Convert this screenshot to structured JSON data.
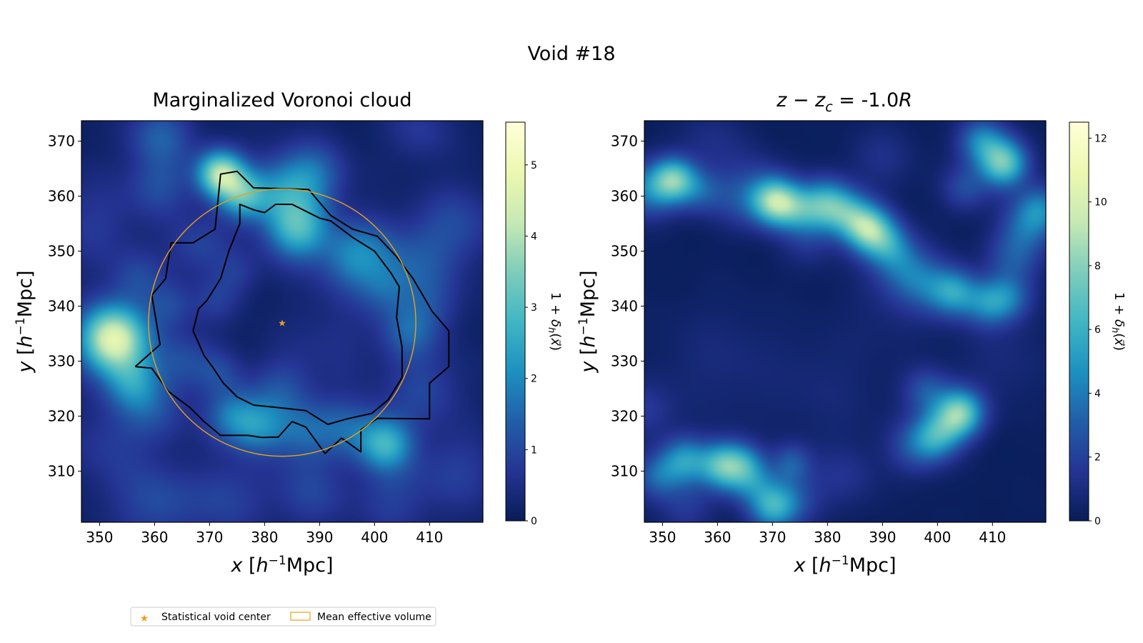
{
  "figure": {
    "suptitle": "Void #18"
  },
  "colors": {
    "accent": "#e8a11f",
    "contour": "#000000",
    "colormap": [
      "#081d58",
      "#253494",
      "#225ea8",
      "#1d91c0",
      "#41b6c4",
      "#7fcdbb",
      "#c7e9b4",
      "#edf8b1",
      "#ffffd9"
    ]
  },
  "chart_data": [
    {
      "type": "heatmap",
      "title": "Marginalized Voronoi cloud",
      "xlabel": "x [h⁻¹Mpc]",
      "ylabel": "y [h⁻¹Mpc]",
      "xlim": [
        346.7,
        419.7
      ],
      "ylim": [
        300.7,
        373.7
      ],
      "xticks": [
        350,
        360,
        370,
        380,
        390,
        400,
        410
      ],
      "yticks": [
        310,
        320,
        330,
        340,
        350,
        360,
        370
      ],
      "colorbar": {
        "label": "1 + δh(x)",
        "ticks": [
          0,
          1,
          2,
          3,
          4,
          5
        ],
        "range": [
          0,
          5.6
        ]
      },
      "blobs": [
        [
          352.5,
          334,
          4.3,
          4.6
        ],
        [
          356,
          326,
          3.5,
          1.6
        ],
        [
          361,
          362,
          4,
          0.9
        ],
        [
          372,
          364,
          3,
          3.8
        ],
        [
          376,
          360,
          3,
          2.2
        ],
        [
          386,
          354,
          4,
          2.5
        ],
        [
          383,
          361,
          4.5,
          1.6
        ],
        [
          389,
          364,
          4,
          1.3
        ],
        [
          398,
          350,
          4.5,
          1.2
        ],
        [
          402,
          343,
          3.5,
          0.9
        ],
        [
          406,
          335,
          3.5,
          1.1
        ],
        [
          409,
          325,
          5,
          0.8
        ],
        [
          408,
          348,
          5,
          0.9
        ],
        [
          415,
          355,
          5,
          0.8
        ],
        [
          410,
          340,
          4,
          0.7
        ],
        [
          374,
          320,
          3.5,
          1.5
        ],
        [
          379,
          318,
          3.5,
          1.5
        ],
        [
          383,
          325,
          4,
          0.9
        ],
        [
          372,
          328,
          3,
          0.7
        ],
        [
          387,
          317,
          4,
          1.2
        ],
        [
          402,
          315,
          3.5,
          2.4
        ],
        [
          395,
          318,
          4,
          1.1
        ],
        [
          365,
          330,
          4,
          0.9
        ],
        [
          363,
          340,
          3,
          0.8
        ],
        [
          371,
          341,
          3,
          0.6
        ],
        [
          375,
          346,
          3,
          0.6
        ],
        [
          360,
          304,
          5,
          0.9
        ],
        [
          373,
          305,
          5,
          0.8
        ],
        [
          388,
          306,
          4.5,
          0.8
        ],
        [
          403,
          305,
          5,
          0.7
        ],
        [
          415,
          310,
          5,
          0.7
        ],
        [
          361,
          371,
          4,
          1.2
        ],
        [
          349,
          355,
          6,
          0.6
        ],
        [
          352,
          315,
          6,
          0.6
        ],
        [
          368,
          351,
          4,
          0.8
        ],
        [
          392,
          334,
          6,
          0.4
        ],
        [
          395,
          348,
          4,
          0.8
        ],
        [
          357,
          345,
          3.5,
          0.8
        ],
        [
          408,
          372,
          4,
          0.6
        ],
        [
          360,
          321,
          4,
          0.8
        ]
      ],
      "contours": [
        [
          [
            356.5,
            329
          ],
          [
            361,
            333
          ],
          [
            359.5,
            342
          ],
          [
            362,
            345
          ],
          [
            363,
            351.5
          ],
          [
            367,
            351.5
          ],
          [
            371,
            354
          ],
          [
            372,
            364
          ],
          [
            375,
            364.5
          ],
          [
            378,
            361.5
          ],
          [
            388,
            361.2
          ],
          [
            392,
            356.5
          ],
          [
            396,
            354
          ],
          [
            400.5,
            352.7
          ],
          [
            404,
            349
          ],
          [
            407,
            345
          ],
          [
            410.5,
            339
          ],
          [
            413.5,
            335.5
          ],
          [
            413.5,
            329
          ],
          [
            410,
            326
          ],
          [
            410,
            319.5
          ],
          [
            400.5,
            319.6
          ],
          [
            397.5,
            317.5
          ],
          [
            397.5,
            313.5
          ],
          [
            394,
            316
          ],
          [
            391,
            313.2
          ],
          [
            387.5,
            318
          ],
          [
            385,
            319
          ],
          [
            382.5,
            316.2
          ],
          [
            379.5,
            316.1
          ],
          [
            377,
            316.5
          ],
          [
            372,
            316.5
          ],
          [
            369,
            319
          ],
          [
            366.5,
            321.5
          ],
          [
            362.5,
            324.5
          ],
          [
            359.5,
            328.7
          ],
          [
            356.5,
            329
          ]
        ],
        [
          [
            367,
            335.5
          ],
          [
            368,
            339.5
          ],
          [
            369.5,
            341
          ],
          [
            372,
            345
          ],
          [
            373.5,
            350
          ],
          [
            375.5,
            355
          ],
          [
            375.5,
            358.5
          ],
          [
            378,
            357.5
          ],
          [
            380,
            357
          ],
          [
            382,
            358.5
          ],
          [
            385,
            358.5
          ],
          [
            390,
            356
          ],
          [
            392,
            355.5
          ],
          [
            396,
            352.5
          ],
          [
            400,
            350
          ],
          [
            403,
            346
          ],
          [
            404.5,
            343.5
          ],
          [
            404,
            338
          ],
          [
            405,
            332.5
          ],
          [
            405,
            327
          ],
          [
            402.5,
            323
          ],
          [
            399.5,
            320.5
          ],
          [
            395,
            319.5
          ],
          [
            391.5,
            318.5
          ],
          [
            387.5,
            321
          ],
          [
            383,
            321.5
          ],
          [
            378,
            322
          ],
          [
            375,
            323.5
          ],
          [
            372.5,
            326
          ],
          [
            370.5,
            329
          ],
          [
            369,
            331
          ],
          [
            367,
            335.5
          ]
        ]
      ],
      "void_center": [
        383.2,
        337.0
      ],
      "effective_radius": 24.3
    },
    {
      "type": "heatmap",
      "title_pre": "z − z",
      "title_sub": "c",
      "title_mid": " = -1.0",
      "title_post": "R",
      "xlabel": "x [h⁻¹Mpc]",
      "ylabel": "y [h⁻¹Mpc]",
      "xlim": [
        346.7,
        419.7
      ],
      "ylim": [
        300.7,
        373.7
      ],
      "xticks": [
        350,
        360,
        370,
        380,
        390,
        400,
        410
      ],
      "yticks": [
        310,
        320,
        330,
        340,
        350,
        360,
        370
      ],
      "colorbar": {
        "label": "1 + δh(x)",
        "ticks": [
          0,
          2,
          4,
          6,
          8,
          10,
          12
        ],
        "range": [
          0,
          12.5
        ]
      },
      "blobs": [
        [
          352,
          363,
          2.8,
          6.5
        ],
        [
          347.5,
          361,
          3.5,
          3.5
        ],
        [
          357,
          361,
          3,
          2.5
        ],
        [
          364,
          359,
          3.5,
          1.6
        ],
        [
          370.5,
          359,
          3,
          8
        ],
        [
          375,
          357.5,
          3,
          3.5
        ],
        [
          380,
          358.5,
          3.2,
          5.5
        ],
        [
          384,
          356.5,
          3,
          3.5
        ],
        [
          387.5,
          354,
          3,
          7
        ],
        [
          391,
          351,
          3,
          3.5
        ],
        [
          394,
          347,
          3.5,
          2.2
        ],
        [
          398,
          344,
          3.5,
          2.2
        ],
        [
          403,
          342.5,
          3,
          4.5
        ],
        [
          409,
          340.5,
          3,
          3.5
        ],
        [
          413,
          341.5,
          3,
          3
        ],
        [
          414,
          349,
          3.5,
          2.5
        ],
        [
          416.5,
          355,
          3.5,
          2.8
        ],
        [
          412,
          366,
          3,
          7
        ],
        [
          405,
          361.5,
          3,
          2.2
        ],
        [
          408,
          370,
          3,
          4
        ],
        [
          419,
          358,
          3,
          3
        ],
        [
          404,
          320.5,
          3,
          7.5
        ],
        [
          400,
          316.5,
          3,
          4.5
        ],
        [
          396,
          314.5,
          3.5,
          2.5
        ],
        [
          398,
          324.5,
          3,
          2.5
        ],
        [
          349,
          309,
          3,
          3
        ],
        [
          354,
          312,
          3,
          4.5
        ],
        [
          361,
          311,
          3,
          6.5
        ],
        [
          366,
          308.5,
          3,
          3.5
        ],
        [
          365,
          312,
          2.5,
          2
        ],
        [
          370,
          303.5,
          3,
          5
        ],
        [
          374,
          305,
          3.5,
          2
        ],
        [
          373.5,
          311.5,
          2.5,
          2.5
        ],
        [
          354.5,
          303.5,
          3.5,
          1.5
        ],
        [
          383,
          309,
          4,
          1.2
        ],
        [
          376.5,
          352,
          3.5,
          1.2
        ],
        [
          393,
          342,
          6,
          0.8
        ],
        [
          360,
          330,
          8,
          0.7
        ],
        [
          380,
          325,
          8,
          0.6
        ],
        [
          412,
          330,
          6,
          0.7
        ],
        [
          347,
          321,
          3.5,
          1.5
        ],
        [
          366,
          363,
          4,
          1.2
        ],
        [
          390,
          367,
          4,
          1.1
        ],
        [
          359,
          370,
          4,
          1
        ]
      ]
    }
  ],
  "legend": {
    "items": [
      {
        "label": "Statistical void center",
        "symbol": "star-icon"
      },
      {
        "label": "Mean effective volume",
        "symbol": "circle-outline"
      }
    ]
  }
}
